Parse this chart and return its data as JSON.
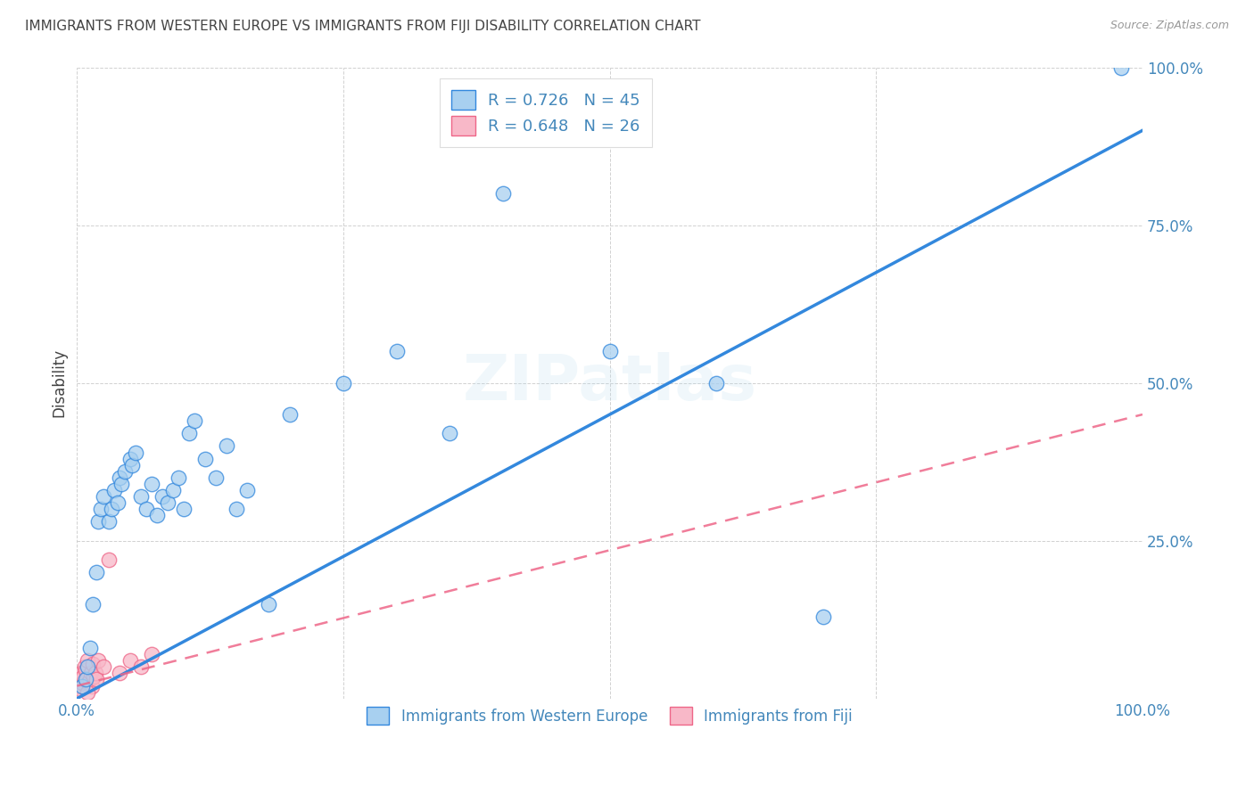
{
  "title": "IMMIGRANTS FROM WESTERN EUROPE VS IMMIGRANTS FROM FIJI DISABILITY CORRELATION CHART",
  "source": "Source: ZipAtlas.com",
  "ylabel": "Disability",
  "r_blue": 0.726,
  "n_blue": 45,
  "r_pink": 0.648,
  "n_pink": 26,
  "watermark": "ZIPatlas",
  "blue_scatter_x": [
    0.5,
    0.8,
    1.0,
    1.2,
    1.5,
    1.8,
    2.0,
    2.2,
    2.5,
    3.0,
    3.2,
    3.5,
    3.8,
    4.0,
    4.2,
    4.5,
    5.0,
    5.2,
    5.5,
    6.0,
    6.5,
    7.0,
    7.5,
    8.0,
    8.5,
    9.0,
    9.5,
    10.0,
    10.5,
    11.0,
    12.0,
    13.0,
    14.0,
    15.0,
    16.0,
    18.0,
    20.0,
    25.0,
    30.0,
    35.0,
    40.0,
    50.0,
    60.0,
    70.0,
    98.0
  ],
  "blue_scatter_y": [
    2.0,
    3.0,
    5.0,
    8.0,
    15.0,
    20.0,
    28.0,
    30.0,
    32.0,
    28.0,
    30.0,
    33.0,
    31.0,
    35.0,
    34.0,
    36.0,
    38.0,
    37.0,
    39.0,
    32.0,
    30.0,
    34.0,
    29.0,
    32.0,
    31.0,
    33.0,
    35.0,
    30.0,
    42.0,
    44.0,
    38.0,
    35.0,
    40.0,
    30.0,
    33.0,
    15.0,
    45.0,
    50.0,
    55.0,
    42.0,
    80.0,
    55.0,
    50.0,
    13.0,
    100.0
  ],
  "pink_scatter_x": [
    0.1,
    0.2,
    0.3,
    0.4,
    0.5,
    0.6,
    0.7,
    0.8,
    0.9,
    1.0,
    1.1,
    1.2,
    1.3,
    1.4,
    1.5,
    1.6,
    1.7,
    1.8,
    2.0,
    2.5,
    3.0,
    4.0,
    5.0,
    6.0,
    7.0,
    1.0
  ],
  "pink_scatter_y": [
    2.0,
    3.0,
    1.5,
    4.0,
    2.5,
    3.5,
    5.0,
    4.5,
    3.0,
    6.0,
    2.5,
    3.0,
    4.0,
    2.0,
    5.5,
    3.5,
    4.0,
    3.0,
    6.0,
    5.0,
    22.0,
    4.0,
    6.0,
    5.0,
    7.0,
    1.0
  ],
  "xlim": [
    0,
    100
  ],
  "ylim": [
    0,
    100
  ],
  "blue_color": "#A8D0F0",
  "pink_color": "#F8B8C8",
  "blue_line_color": "#3388DD",
  "pink_line_color": "#EE6688",
  "title_color": "#444444",
  "axis_color": "#4488BB",
  "grid_color": "#CCCCCC",
  "background_color": "#FFFFFF",
  "legend_label_blue": "Immigrants from Western Europe",
  "legend_label_pink": "Immigrants from Fiji",
  "blue_reg_x0": 0,
  "blue_reg_y0": 0,
  "blue_reg_x1": 100,
  "blue_reg_y1": 90,
  "pink_reg_x0": 0,
  "pink_reg_y0": 2,
  "pink_reg_x1": 100,
  "pink_reg_y1": 45
}
